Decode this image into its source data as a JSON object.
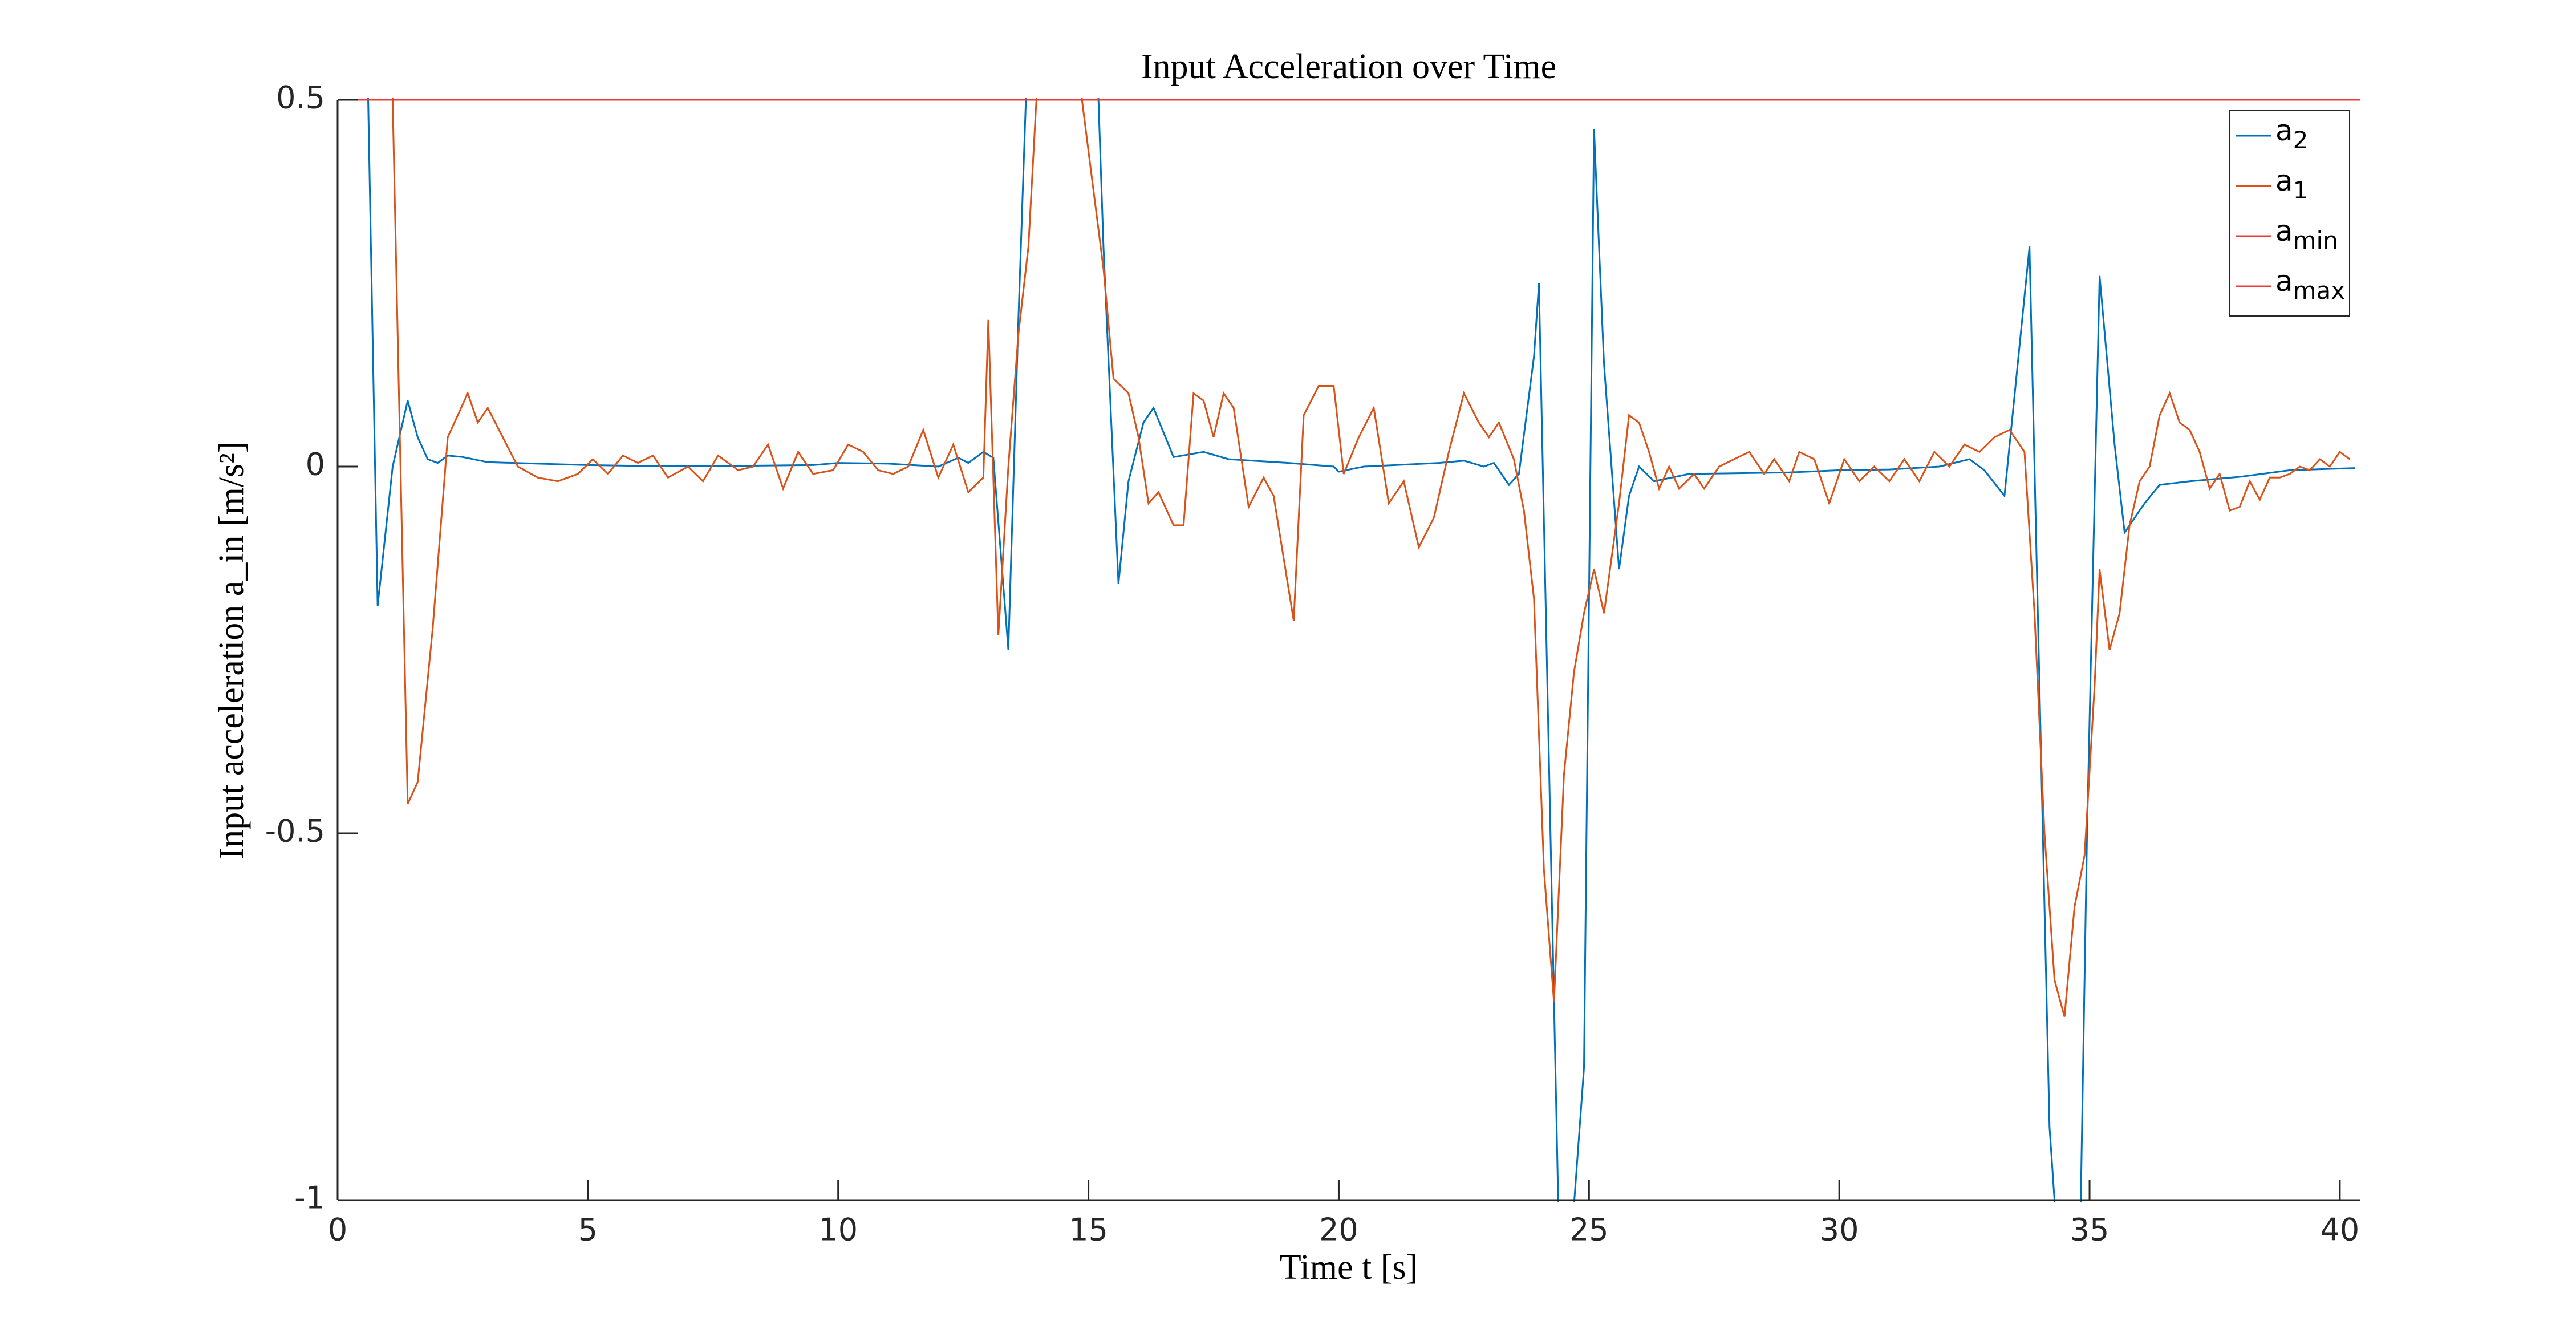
{
  "chart_data": {
    "type": "line",
    "title": "Input Acceleration over Time",
    "xlabel": "Time t [s]",
    "ylabel": "Input acceleration a_in [m/s²]",
    "xlim": [
      0,
      40.4
    ],
    "ylim": [
      -1,
      0.5
    ],
    "xticks": [
      0,
      5,
      10,
      15,
      20,
      25,
      30,
      35,
      40
    ],
    "yticks": [
      -1,
      -0.5,
      0,
      0.5
    ],
    "grid": false,
    "legend": "northeast",
    "series": [
      {
        "name": "a2",
        "color": "#0072bd",
        "x": [
          0.5,
          0.8,
          1.1,
          1.4,
          1.6,
          1.8,
          2.0,
          2.2,
          2.5,
          3.0,
          4.0,
          5.0,
          6.0,
          8.0,
          9.5,
          10.0,
          11.0,
          12.0,
          12.4,
          12.6,
          12.9,
          13.1,
          13.4,
          13.6,
          13.9,
          14.5,
          15.1,
          15.3,
          15.6,
          15.8,
          16.1,
          16.3,
          16.7,
          17.3,
          17.8,
          19.0,
          19.9,
          20.0,
          20.5,
          22.0,
          22.5,
          22.9,
          23.1,
          23.4,
          23.6,
          23.9,
          24.0,
          24.4,
          24.6,
          24.9,
          25.1,
          25.3,
          25.6,
          25.8,
          26.0,
          26.3,
          27.0,
          29.0,
          30.0,
          31.0,
          32.0,
          32.6,
          32.9,
          33.3,
          33.8,
          34.2,
          34.5,
          34.8,
          34.95,
          35.2,
          35.5,
          35.7,
          36.1,
          36.4,
          37.0,
          38.0,
          39.0,
          40.3
        ],
        "values": [
          0.9,
          -0.19,
          0.0,
          0.09,
          0.04,
          0.01,
          0.005,
          0.015,
          0.013,
          0.006,
          0.004,
          0.002,
          0.001,
          0.001,
          0.002,
          0.005,
          0.004,
          0.0,
          0.012,
          0.005,
          0.02,
          0.012,
          -0.25,
          0.2,
          0.8,
          1.0,
          0.7,
          0.3,
          -0.16,
          -0.02,
          0.06,
          0.08,
          0.013,
          0.02,
          0.01,
          0.005,
          0.0,
          -0.007,
          0.0,
          0.005,
          0.008,
          0.0,
          0.005,
          -0.025,
          -0.01,
          0.15,
          0.25,
          -1.05,
          -1.1,
          -0.82,
          0.46,
          0.14,
          -0.14,
          -0.04,
          0.0,
          -0.02,
          -0.01,
          -0.008,
          -0.005,
          -0.004,
          0.0,
          0.01,
          -0.005,
          -0.04,
          0.3,
          -0.9,
          -1.2,
          -1.1,
          -0.5,
          0.26,
          0.03,
          -0.09,
          -0.05,
          -0.025,
          -0.02,
          -0.014,
          -0.005,
          -0.002
        ]
      },
      {
        "name": "a1",
        "color": "#d95319",
        "x": [
          0.9,
          1.1,
          1.4,
          1.6,
          1.9,
          2.2,
          2.4,
          2.6,
          2.8,
          3.0,
          3.3,
          3.6,
          4.0,
          4.4,
          4.8,
          5.1,
          5.4,
          5.7,
          6.0,
          6.3,
          6.6,
          7.0,
          7.3,
          7.6,
          8.0,
          8.3,
          8.6,
          8.9,
          9.2,
          9.5,
          9.9,
          10.2,
          10.5,
          10.8,
          11.1,
          11.4,
          11.7,
          12.0,
          12.3,
          12.6,
          12.9,
          13.0,
          13.2,
          13.4,
          13.6,
          13.8,
          14.0,
          14.5,
          15.0,
          15.3,
          15.5,
          15.8,
          16.0,
          16.2,
          16.4,
          16.7,
          16.9,
          17.1,
          17.3,
          17.5,
          17.7,
          17.9,
          18.2,
          18.5,
          18.7,
          19.1,
          19.3,
          19.6,
          19.9,
          20.1,
          20.4,
          20.7,
          21.0,
          21.3,
          21.6,
          21.9,
          22.2,
          22.5,
          22.8,
          23.0,
          23.2,
          23.5,
          23.7,
          23.9,
          24.1,
          24.3,
          24.5,
          24.7,
          24.9,
          25.1,
          25.3,
          25.6,
          25.8,
          26.0,
          26.2,
          26.4,
          26.6,
          26.8,
          27.1,
          27.3,
          27.6,
          27.9,
          28.2,
          28.5,
          28.7,
          29.0,
          29.2,
          29.5,
          29.8,
          30.1,
          30.4,
          30.7,
          31.0,
          31.3,
          31.6,
          31.9,
          32.2,
          32.5,
          32.8,
          33.1,
          33.4,
          33.7,
          33.9,
          34.1,
          34.3,
          34.5,
          34.7,
          34.9,
          35.1,
          35.2,
          35.4,
          35.6,
          35.8,
          36.0,
          36.2,
          36.4,
          36.6,
          36.8,
          37.0,
          37.2,
          37.4,
          37.6,
          37.8,
          38.0,
          38.2,
          38.4,
          38.6,
          38.8,
          39.0,
          39.2,
          39.4,
          39.6,
          39.8,
          40.0,
          40.2
        ],
        "values": [
          0.9,
          0.5,
          -0.46,
          -0.43,
          -0.22,
          0.04,
          0.07,
          0.1,
          0.06,
          0.08,
          0.04,
          0.0,
          -0.015,
          -0.02,
          -0.01,
          0.01,
          -0.01,
          0.015,
          0.005,
          0.015,
          -0.015,
          0.0,
          -0.02,
          0.015,
          -0.005,
          0.0,
          0.03,
          -0.03,
          0.02,
          -0.01,
          -0.005,
          0.03,
          0.02,
          -0.005,
          -0.01,
          0.0,
          0.05,
          -0.015,
          0.03,
          -0.035,
          -0.015,
          0.2,
          -0.23,
          0.0,
          0.18,
          0.3,
          0.55,
          0.7,
          0.43,
          0.27,
          0.12,
          0.1,
          0.04,
          -0.05,
          -0.035,
          -0.08,
          -0.08,
          0.1,
          0.09,
          0.04,
          0.1,
          0.08,
          -0.055,
          -0.015,
          -0.04,
          -0.21,
          0.07,
          0.11,
          0.11,
          -0.01,
          0.04,
          0.08,
          -0.05,
          -0.02,
          -0.11,
          -0.07,
          0.02,
          0.1,
          0.06,
          0.04,
          0.06,
          0.01,
          -0.06,
          -0.18,
          -0.55,
          -0.73,
          -0.42,
          -0.28,
          -0.2,
          -0.14,
          -0.2,
          -0.05,
          0.07,
          0.06,
          0.02,
          -0.03,
          0.0,
          -0.03,
          -0.01,
          -0.03,
          0.0,
          0.01,
          0.02,
          -0.01,
          0.01,
          -0.02,
          0.02,
          0.01,
          -0.05,
          0.01,
          -0.02,
          0.0,
          -0.02,
          0.01,
          -0.02,
          0.02,
          0.0,
          0.03,
          0.02,
          0.04,
          0.05,
          0.02,
          -0.2,
          -0.5,
          -0.7,
          -0.75,
          -0.6,
          -0.53,
          -0.3,
          -0.14,
          -0.25,
          -0.2,
          -0.08,
          -0.02,
          0.0,
          0.07,
          0.1,
          0.06,
          0.05,
          0.02,
          -0.03,
          -0.01,
          -0.06,
          -0.055,
          -0.02,
          -0.045,
          -0.015,
          -0.015,
          -0.01,
          0.0,
          -0.005,
          0.01,
          0.0,
          0.02,
          0.01
        ]
      },
      {
        "name": "amin",
        "color": "#ee3b3b",
        "x": [
          0,
          40.4
        ],
        "values": [
          -1,
          -1
        ]
      },
      {
        "name": "amax",
        "color": "#ee3b3b",
        "x": [
          0,
          40.4
        ],
        "values": [
          0.5,
          0.5
        ]
      }
    ]
  }
}
